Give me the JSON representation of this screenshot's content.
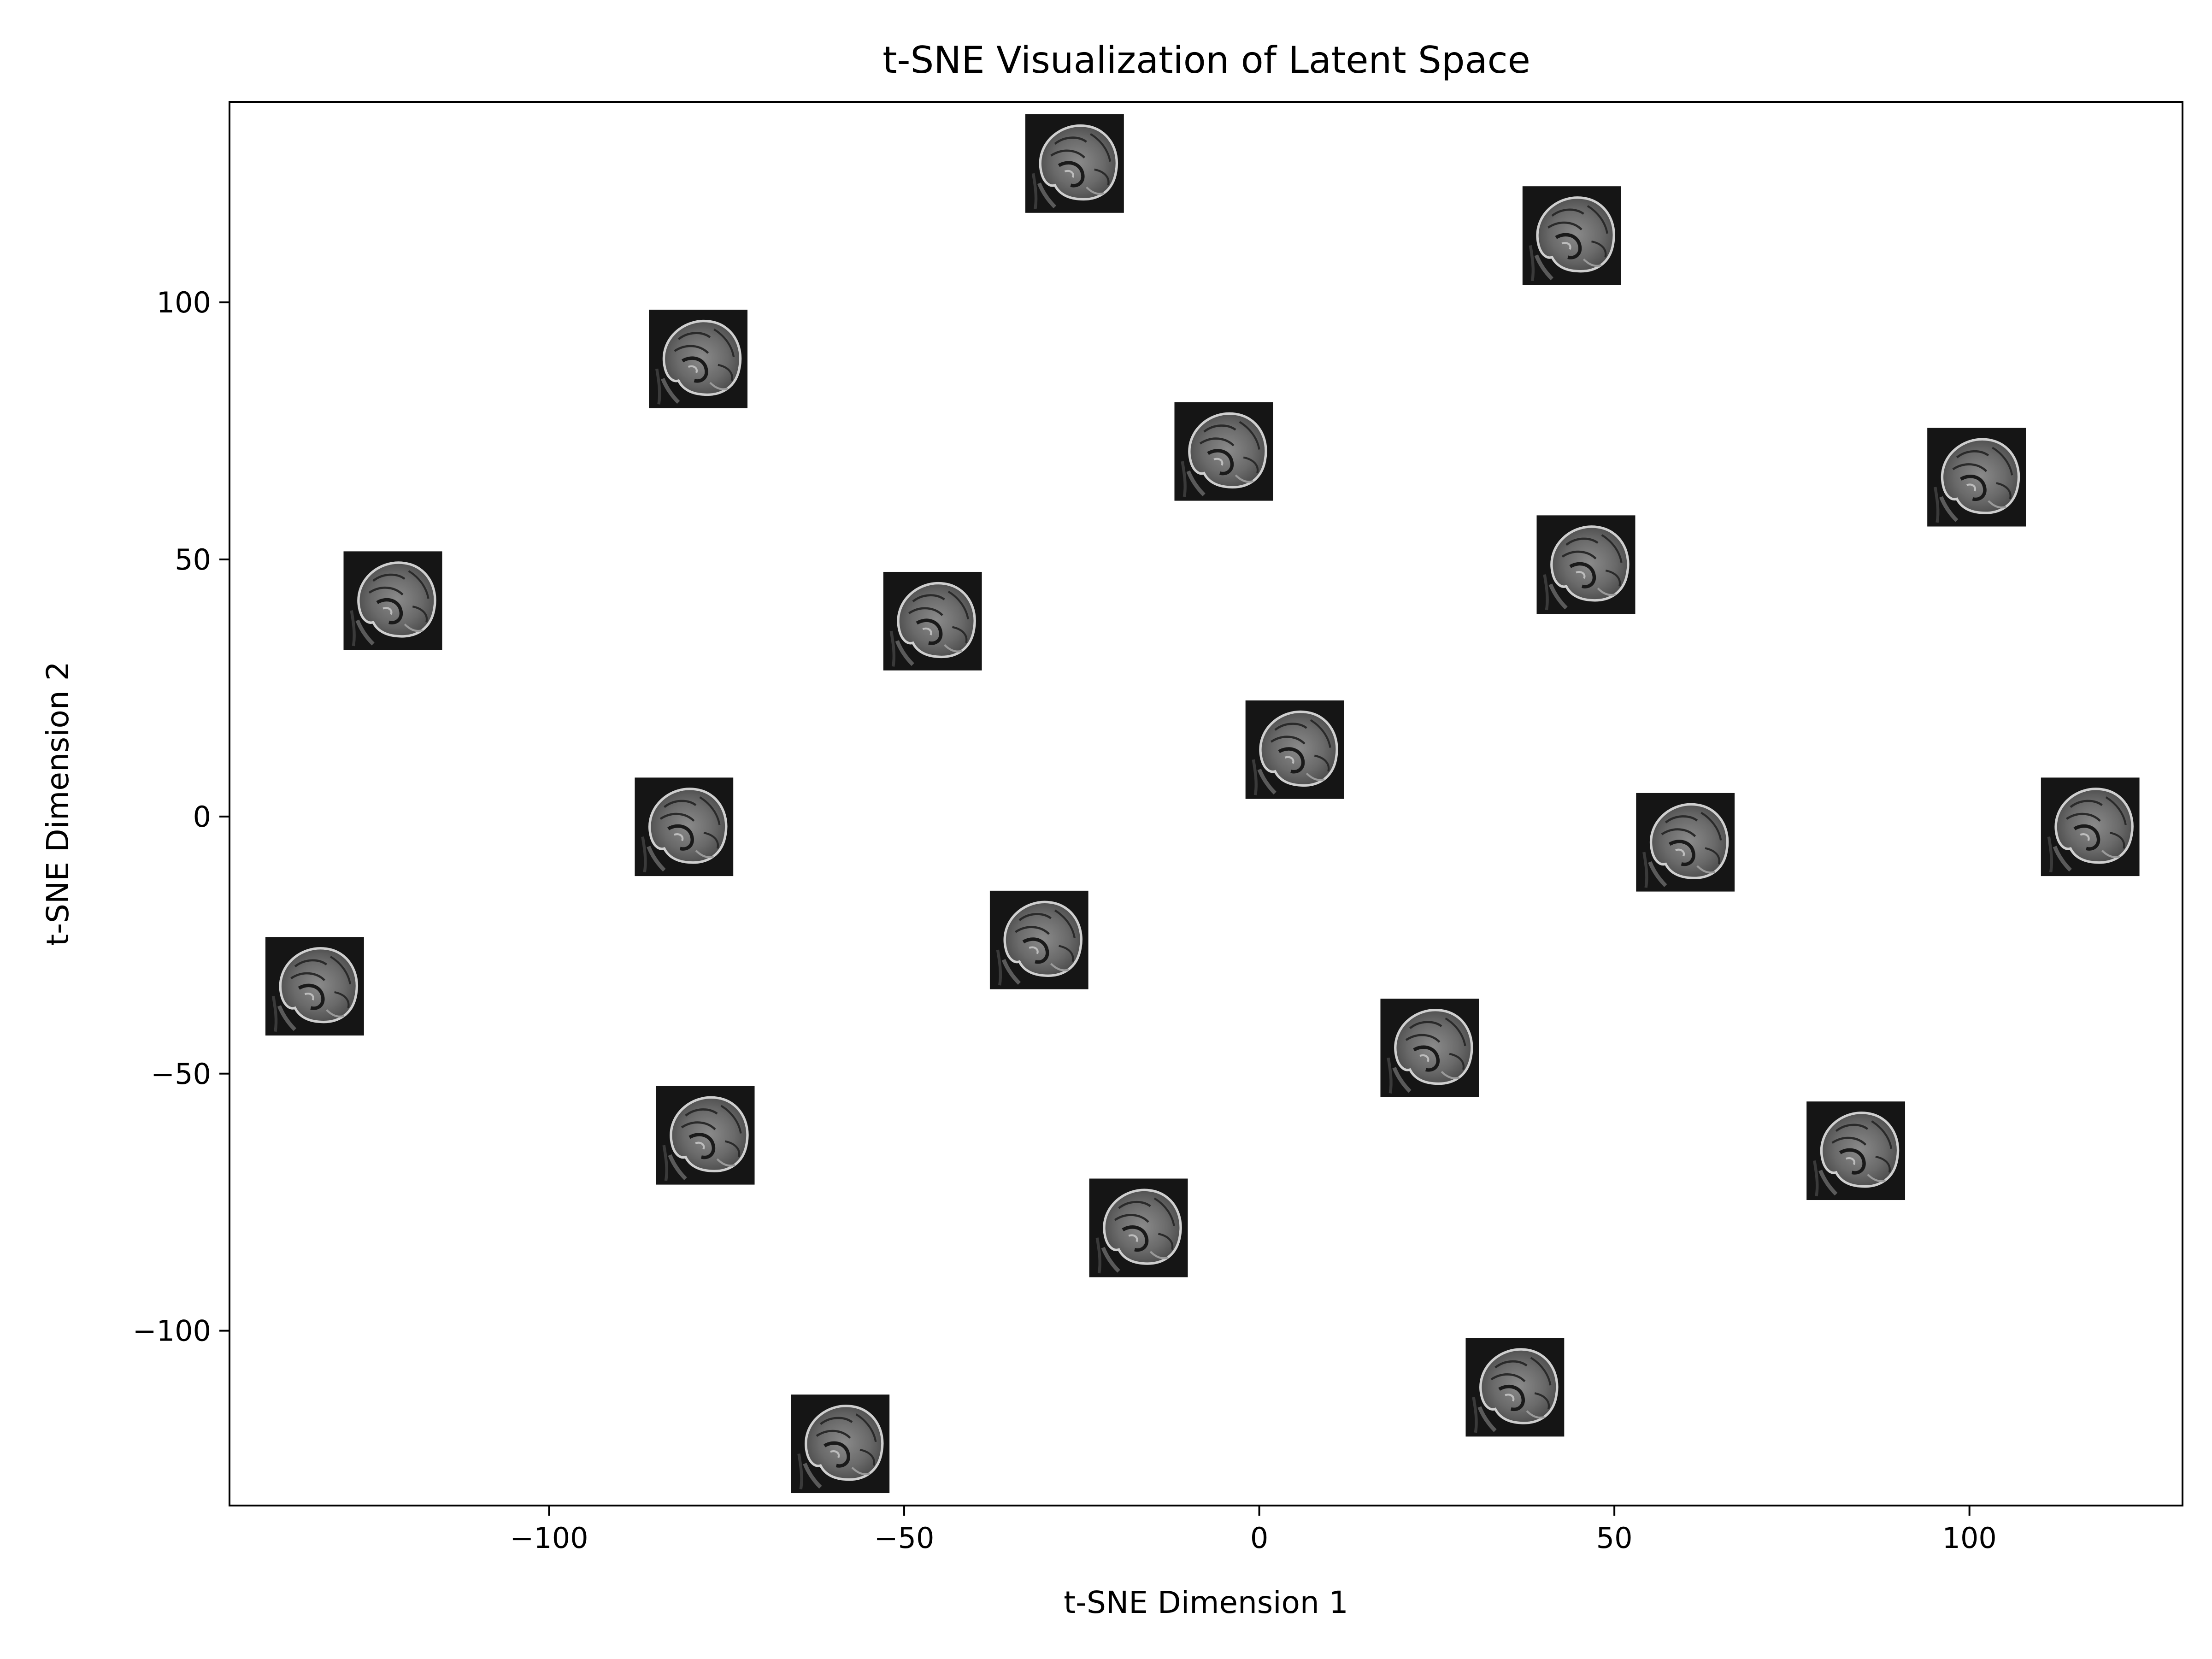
{
  "chart_data": {
    "type": "scatter",
    "marker": "brain-mri-thumbnail",
    "title": "t-SNE Visualization of Latent Space",
    "xlabel": "t-SNE Dimension 1",
    "ylabel": "t-SNE Dimension 2",
    "xlim": [
      -145,
      130
    ],
    "ylim": [
      -134,
      139
    ],
    "xticks": [
      -100,
      -50,
      0,
      50,
      100
    ],
    "yticks": [
      -100,
      -50,
      0,
      50,
      100
    ],
    "xtick_labels": [
      "−100",
      "−50",
      "0",
      "50",
      "100"
    ],
    "ytick_labels": [
      "−100",
      "−50",
      "0",
      "50",
      "100"
    ],
    "grid": false,
    "points": [
      {
        "x": -26,
        "y": 127
      },
      {
        "x": 44,
        "y": 113
      },
      {
        "x": -79,
        "y": 89
      },
      {
        "x": -5,
        "y": 71
      },
      {
        "x": 101,
        "y": 66
      },
      {
        "x": 46,
        "y": 49
      },
      {
        "x": -122,
        "y": 42
      },
      {
        "x": -46,
        "y": 38
      },
      {
        "x": 5,
        "y": 13
      },
      {
        "x": -81,
        "y": -2
      },
      {
        "x": 60,
        "y": -5
      },
      {
        "x": 117,
        "y": -2
      },
      {
        "x": -31,
        "y": -24
      },
      {
        "x": -133,
        "y": -33
      },
      {
        "x": 24,
        "y": -45
      },
      {
        "x": -78,
        "y": -62
      },
      {
        "x": 84,
        "y": -65
      },
      {
        "x": -17,
        "y": -80
      },
      {
        "x": 36,
        "y": -111
      },
      {
        "x": -59,
        "y": -122
      }
    ]
  }
}
